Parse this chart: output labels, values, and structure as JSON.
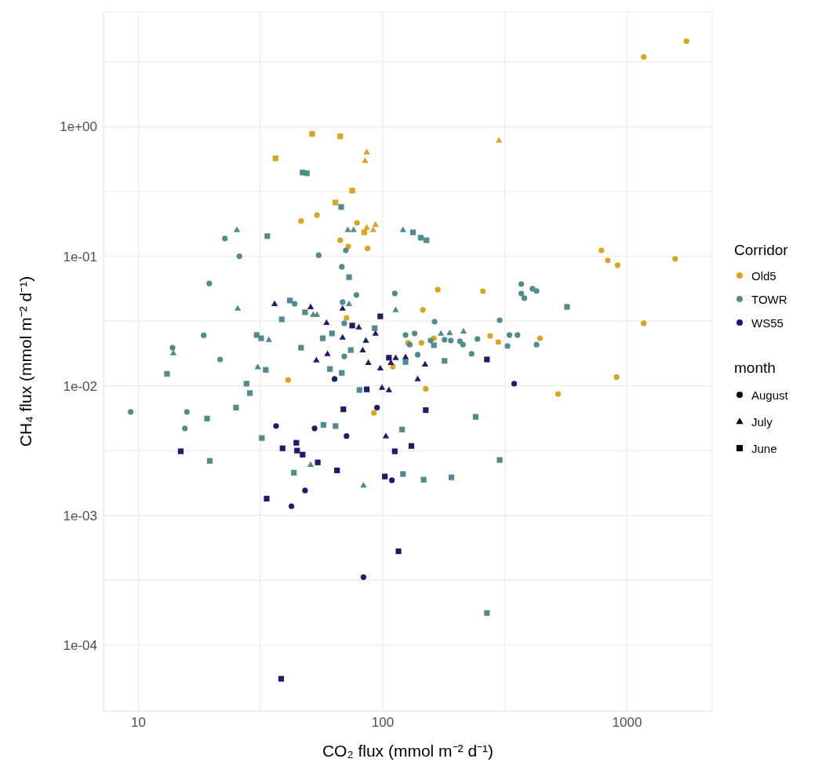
{
  "chart_data": {
    "type": "scatter",
    "xlabel": "CO₂ flux (mmol m⁻² d⁻¹)",
    "ylabel": "CH₄ flux (mmol m⁻² d⁻¹)",
    "log": "xy",
    "xlim": [
      7.2,
      2230
    ],
    "ylim": [
      3.1e-05,
      7.7
    ],
    "xticks": [
      10,
      {
        "value": 31.62,
        "label": null
      },
      100,
      {
        "value": 316.2,
        "label": null
      },
      1000
    ],
    "yticks": [
      {
        "value": 0.0001,
        "label": "1e-04"
      },
      {
        "value": 0.0003162,
        "label": null
      },
      {
        "value": 0.001,
        "label": "1e-03"
      },
      {
        "value": 0.003162,
        "label": null
      },
      {
        "value": 0.01,
        "label": "1e-02"
      },
      {
        "value": 0.03162,
        "label": null
      },
      {
        "value": 0.1,
        "label": "1e-01"
      },
      {
        "value": 0.3162,
        "label": null
      },
      {
        "value": 1,
        "label": "1e+00"
      },
      {
        "value": 3.162,
        "label": null
      }
    ],
    "grid": true,
    "legend": "right",
    "legend_title": "Corridor",
    "annotations": [
      "month",
      "August",
      "July",
      "June"
    ],
    "series": [
      {
        "name": "Old5",
        "marker": "circle",
        "color": "#d9a521",
        "x": [
          1750,
          1170,
          785,
          834,
          914,
          1573,
          1170,
          906,
          522,
          440,
          46.3,
          53.8,
          78.5,
          67,
          72.3,
          86.7,
          168,
          257,
          146,
          71.1,
          162,
          275,
          297,
          127,
          144,
          110,
          150,
          92,
          41
        ],
        "values": [
          4.56,
          3.45,
          0.111,
          0.093,
          0.0855,
          0.0955,
          0.0304,
          0.0117,
          0.00865,
          0.0233,
          0.187,
          0.208,
          0.181,
          0.133,
          0.119,
          0.115,
          0.0553,
          0.0538,
          0.0386,
          0.0335,
          0.0233,
          0.0243,
          0.0218,
          0.0215,
          0.0215,
          0.0141,
          0.0095,
          0.0062,
          0.0111
        ]
      },
      {
        "marker": "triangle",
        "color": "#d9a521",
        "x": [
          299,
          86,
          84.7,
          86,
          91.4,
          93.4
        ],
        "values": [
          0.785,
          0.637,
          0.546,
          0.167,
          0.16,
          0.176
        ]
      },
      {
        "marker": "square",
        "color": "#d9a521",
        "x": [
          51.4,
          67,
          36.4,
          75,
          64,
          84
        ],
        "values": [
          0.879,
          0.842,
          0.57,
          0.321,
          0.26,
          0.153
        ]
      },
      {
        "name": "TOWR",
        "marker": "circle",
        "color": "#4f8c8b",
        "x": [
          9.3,
          15.8,
          15.5,
          13.8,
          21.6,
          18.5,
          19.5,
          22.6,
          25.9,
          54.7,
          43.6,
          70.6,
          68,
          78,
          68.5,
          112,
          69.6,
          163,
          301,
          369,
          369,
          380,
          410,
          426,
          124,
          135,
          129,
          139,
          157,
          179,
          190,
          207,
          213,
          231,
          244,
          330,
          356,
          324,
          426,
          69.6
        ],
        "values": [
          0.0063,
          0.0063,
          0.0047,
          0.0197,
          0.016,
          0.0246,
          0.0617,
          0.137,
          0.1,
          0.102,
          0.043,
          0.111,
          0.083,
          0.0503,
          0.0443,
          0.0517,
          0.0304,
          0.0313,
          0.0321,
          0.061,
          0.0516,
          0.0475,
          0.0562,
          0.054,
          0.0247,
          0.0254,
          0.0208,
          0.0174,
          0.0224,
          0.0227,
          0.0224,
          0.0221,
          0.0208,
          0.0177,
          0.023,
          0.0247,
          0.0247,
          0.0203,
          0.0208,
          0.0169
        ]
      },
      {
        "marker": "triangle",
        "color": "#4f8c8b",
        "x": [
          25.3,
          25.5,
          13.9,
          34.2,
          30.8,
          51.9,
          72,
          76,
          121,
          72.8,
          113,
          53.8,
          173,
          188,
          214,
          83.4,
          50.7
        ],
        "values": [
          0.16,
          0.0396,
          0.0179,
          0.0227,
          0.014,
          0.0355,
          0.16,
          0.16,
          0.16,
          0.043,
          0.0386,
          0.0355,
          0.0254,
          0.0257,
          0.0264,
          0.00171,
          0.00247
        ]
      },
      {
        "marker": "square",
        "color": "#4f8c8b",
        "x": [
          47,
          48.9,
          33.7,
          41.7,
          38.6,
          48.1,
          30.5,
          31.8,
          46.3,
          33.2,
          13.1,
          27.7,
          28.6,
          25.1,
          19.1,
          32,
          19.6,
          43.3,
          67.6,
          72.8,
          133,
          143,
          151,
          92.7,
          56.8,
          62,
          74,
          162,
          124,
          179,
          60.8,
          68,
          80.3,
          57.2,
          64.1,
          120,
          240,
          301,
          121,
          147,
          191,
          568,
          267
        ],
        "values": [
          0.443,
          0.437,
          0.143,
          0.0456,
          0.0326,
          0.037,
          0.0247,
          0.0233,
          0.0197,
          0.0133,
          0.0124,
          0.0104,
          0.0088,
          0.0068,
          0.0056,
          0.00396,
          0.00264,
          0.00214,
          0.24,
          0.069,
          0.153,
          0.139,
          0.133,
          0.0279,
          0.0233,
          0.0254,
          0.0189,
          0.0206,
          0.0153,
          0.0156,
          0.0135,
          0.0126,
          0.0093,
          0.005,
          0.0049,
          0.00461,
          0.00577,
          0.00268,
          0.00209,
          0.00189,
          0.00197,
          0.0407,
          0.000177
        ]
      },
      {
        "name": "WS55",
        "marker": "circle",
        "color": "#1c1c6b",
        "x": [
          345,
          94.8,
          63.5,
          52.6,
          71.1,
          109,
          36.6,
          48.1,
          42.3,
          83.4
        ],
        "values": [
          0.0104,
          0.0068,
          0.0113,
          0.0047,
          0.0041,
          0.00187,
          0.0049,
          0.00156,
          0.00118,
          0.000335
        ]
      },
      {
        "marker": "triangle",
        "color": "#1c1c6b",
        "x": [
          36.1,
          50.7,
          53.5,
          68.5,
          58.9,
          79.8,
          93.4,
          68.5,
          85.3,
          82.8,
          59.4,
          87.3,
          97.7,
          113,
          124,
          108,
          149,
          139,
          99.3,
          106,
          103
        ],
        "values": [
          0.043,
          0.0407,
          0.0158,
          0.0396,
          0.0308,
          0.0284,
          0.0254,
          0.0237,
          0.0224,
          0.0189,
          0.0177,
          0.0151,
          0.0137,
          0.0165,
          0.0167,
          0.0151,
          0.0147,
          0.0113,
          0.0097,
          0.0093,
          0.0041
        ]
      },
      {
        "marker": "square",
        "color": "#1c1c6b",
        "x": [
          97.7,
          75,
          267,
          106,
          86,
          69,
          150,
          131,
          112,
          54.2,
          65,
          102,
          14.9,
          38.9,
          44.3,
          44.6,
          47,
          33.5,
          116,
          38.4
        ],
        "values": [
          0.0344,
          0.0292,
          0.016,
          0.0165,
          0.0094,
          0.0066,
          0.0065,
          0.00344,
          0.00313,
          0.00257,
          0.00223,
          0.002,
          0.00313,
          0.0033,
          0.00364,
          0.00317,
          0.00295,
          0.00135,
          0.00053,
          5.5e-05
        ]
      }
    ]
  }
}
